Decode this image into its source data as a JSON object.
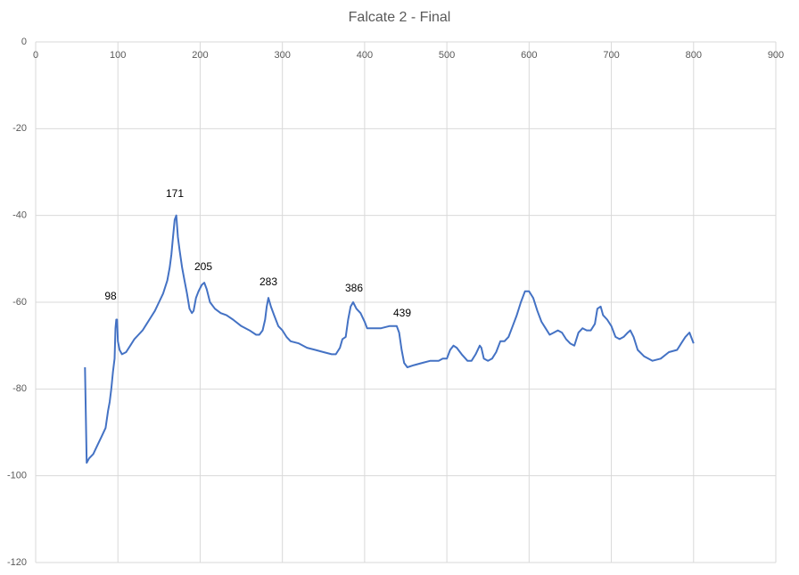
{
  "chart_data": {
    "type": "line",
    "title": "Falcate 2 - Final",
    "x": [
      60,
      62,
      65,
      70,
      75,
      80,
      85,
      88,
      90,
      92,
      94,
      96,
      97,
      98,
      99,
      100,
      102,
      105,
      110,
      115,
      120,
      125,
      130,
      135,
      140,
      145,
      150,
      155,
      160,
      163,
      165,
      167,
      169,
      171,
      173,
      175,
      178,
      181,
      184,
      187,
      190,
      192,
      195,
      198,
      202,
      205,
      208,
      212,
      218,
      225,
      232,
      240,
      250,
      260,
      268,
      272,
      276,
      279,
      281,
      283,
      286,
      290,
      295,
      300,
      305,
      310,
      320,
      330,
      340,
      350,
      360,
      365,
      370,
      373,
      377,
      380,
      383,
      386,
      390,
      395,
      400,
      403,
      410,
      420,
      430,
      435,
      439,
      442,
      445,
      448,
      452,
      460,
      470,
      480,
      490,
      495,
      500,
      504,
      508,
      512,
      518,
      525,
      530,
      535,
      540,
      542,
      545,
      550,
      555,
      560,
      565,
      570,
      575,
      580,
      585,
      590,
      595,
      600,
      605,
      610,
      615,
      620,
      625,
      630,
      635,
      640,
      645,
      650,
      655,
      660,
      665,
      670,
      675,
      680,
      683,
      687,
      690,
      695,
      700,
      705,
      710,
      715,
      720,
      723,
      727,
      732,
      740,
      750,
      760,
      770,
      780,
      785,
      790,
      795,
      800
    ],
    "series": [
      {
        "color": "#4472c4",
        "values": [
          -75,
          -97,
          -96,
          -95,
          -93,
          -91,
          -89,
          -85,
          -83,
          -80,
          -76,
          -73,
          -66,
          -64,
          -64,
          -69,
          -71,
          -72,
          -71.5,
          -70,
          -68.5,
          -67.5,
          -66.5,
          -65,
          -63.5,
          -62,
          -60,
          -58,
          -55,
          -52,
          -49,
          -45,
          -41,
          -40,
          -45,
          -48,
          -52,
          -55,
          -58,
          -61.5,
          -62.5,
          -62,
          -59,
          -57.5,
          -56,
          -55.5,
          -57,
          -60,
          -61.5,
          -62.5,
          -63,
          -64,
          -65.5,
          -66.5,
          -67.5,
          -67.5,
          -66.5,
          -64,
          -61,
          -59,
          -61,
          -63,
          -65.5,
          -66.5,
          -68,
          -69,
          -69.5,
          -70.5,
          -71,
          -71.5,
          -72,
          -72,
          -70.5,
          -68.5,
          -68,
          -64,
          -61,
          -60,
          -61.5,
          -62.5,
          -64.5,
          -66,
          -66,
          -66,
          -65.5,
          -65.5,
          -65.5,
          -67,
          -71,
          -74,
          -75,
          -74.5,
          -74,
          -73.5,
          -73.5,
          -73,
          -73,
          -71,
          -70,
          -70.5,
          -72,
          -73.5,
          -73.5,
          -72,
          -70,
          -70.5,
          -73,
          -73.5,
          -73,
          -71.5,
          -69,
          -69,
          -68,
          -65.5,
          -63,
          -60,
          -57.5,
          -57.5,
          -59,
          -62,
          -64.5,
          -66,
          -67.5,
          -67,
          -66.5,
          -67,
          -68.5,
          -69.5,
          -70,
          -67,
          -66,
          -66.5,
          -66.5,
          -65,
          -61.5,
          -61,
          -63,
          -64,
          -65.5,
          -68,
          -68.5,
          -68,
          -67,
          -66.5,
          -68,
          -71,
          -72.5,
          -73.5,
          -73,
          -71.5,
          -71,
          -69.5,
          -68,
          -67,
          -69.5
        ]
      }
    ],
    "xlim": [
      0,
      900
    ],
    "xticks": [
      0,
      100,
      200,
      300,
      400,
      500,
      600,
      700,
      800,
      900
    ],
    "ylim": [
      -120,
      0
    ],
    "yticks": [
      0,
      -20,
      -40,
      -60,
      -80,
      -100,
      -120
    ],
    "grid": true,
    "annotations": [
      "98",
      "171",
      "205",
      "283",
      "386",
      "439"
    ]
  }
}
